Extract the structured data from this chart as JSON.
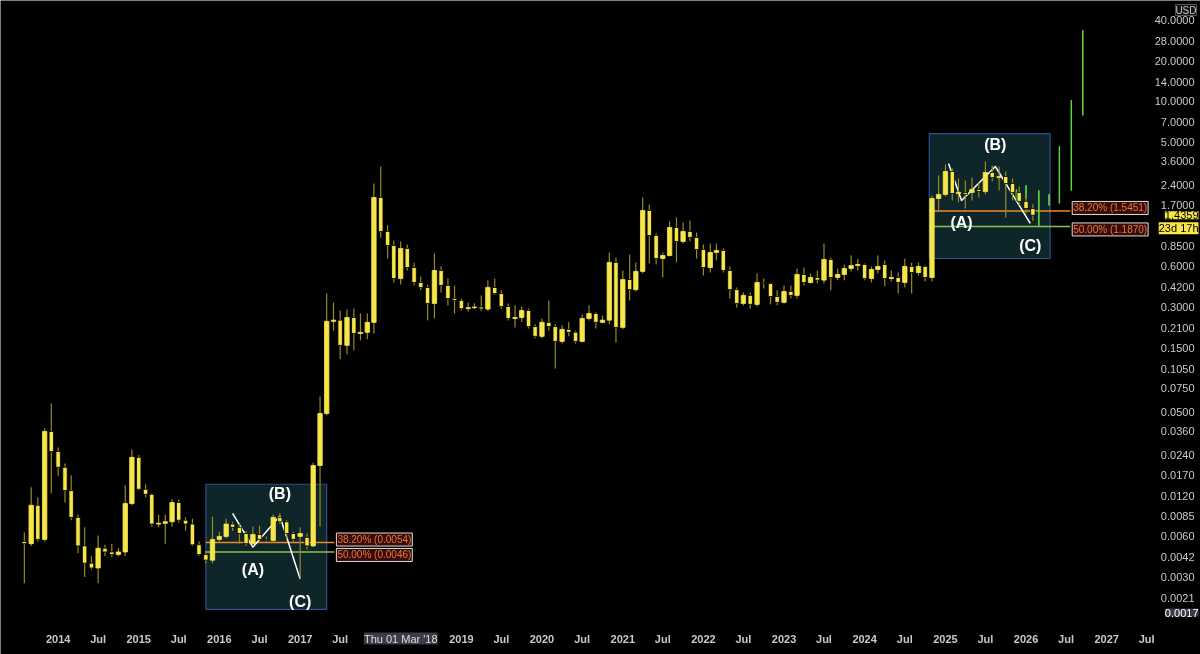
{
  "chart_data": {
    "type": "candlestick",
    "ylabel": "USD",
    "color": "#f7e64a",
    "log": "y",
    "grid": false,
    "x": [
      "2013-08",
      "2013-09",
      "2013-10",
      "2013-11",
      "2013-12",
      "2014-01",
      "2014-02",
      "2014-03",
      "2014-04",
      "2014-05",
      "2014-06",
      "2014-07",
      "2014-08",
      "2014-09",
      "2014-10",
      "2014-11",
      "2014-12",
      "2015-01",
      "2015-02",
      "2015-03",
      "2015-04",
      "2015-05",
      "2015-06",
      "2015-07",
      "2015-08",
      "2015-09",
      "2015-10",
      "2015-11",
      "2015-12",
      "2016-01",
      "2016-02",
      "2016-03",
      "2016-04",
      "2016-05",
      "2016-06",
      "2016-07",
      "2016-08",
      "2016-09",
      "2016-10",
      "2016-11",
      "2016-12",
      "2017-01",
      "2017-02",
      "2017-03",
      "2017-04",
      "2017-05",
      "2017-06",
      "2017-07",
      "2017-08",
      "2017-09",
      "2017-10",
      "2017-11",
      "2017-12",
      "2018-01",
      "2018-02",
      "2018-03",
      "2018-04",
      "2018-05",
      "2018-06",
      "2018-07",
      "2018-08",
      "2018-09",
      "2018-10",
      "2018-11",
      "2018-12",
      "2019-01",
      "2019-02",
      "2019-03",
      "2019-04",
      "2019-05",
      "2019-06",
      "2019-07",
      "2019-08",
      "2019-09",
      "2019-10",
      "2019-11",
      "2019-12",
      "2020-01",
      "2020-02",
      "2020-03",
      "2020-04",
      "2020-05",
      "2020-06",
      "2020-07",
      "2020-08",
      "2020-09",
      "2020-10",
      "2020-11",
      "2020-12",
      "2021-01",
      "2021-02",
      "2021-03",
      "2021-04",
      "2021-05",
      "2021-06",
      "2021-07",
      "2021-08",
      "2021-09",
      "2021-10",
      "2021-11",
      "2021-12",
      "2022-01",
      "2022-02",
      "2022-03",
      "2022-04",
      "2022-05",
      "2022-06",
      "2022-07",
      "2022-08",
      "2022-09",
      "2022-10",
      "2022-11",
      "2022-12",
      "2023-01",
      "2023-02",
      "2023-03",
      "2023-04",
      "2023-05",
      "2023-06",
      "2023-07",
      "2023-08",
      "2023-09",
      "2023-10",
      "2023-11",
      "2023-12",
      "2024-01",
      "2024-02",
      "2024-03",
      "2024-04",
      "2024-05",
      "2024-06",
      "2024-07",
      "2024-08",
      "2024-09",
      "2024-10",
      "2024-11",
      "2024-12",
      "2025-01",
      "2025-02",
      "2025-03",
      "2025-04",
      "2025-05",
      "2025-06",
      "2025-07",
      "2025-08",
      "2025-09",
      "2025-10",
      "2025-11",
      "2025-12",
      "2026-01",
      "2026-02"
    ],
    "ohlc": [
      [
        0.0055,
        0.0064,
        0.0027,
        0.0053
      ],
      [
        0.0053,
        0.0139,
        0.0051,
        0.0102
      ],
      [
        0.0102,
        0.0117,
        0.0055,
        0.0057
      ],
      [
        0.0057,
        0.0378,
        0.0055,
        0.0359
      ],
      [
        0.0359,
        0.0579,
        0.0125,
        0.0255
      ],
      [
        0.0255,
        0.0273,
        0.0167,
        0.0195
      ],
      [
        0.0195,
        0.0208,
        0.0107,
        0.0131
      ],
      [
        0.0131,
        0.017,
        0.0079,
        0.0083
      ],
      [
        0.0083,
        0.0087,
        0.0045,
        0.0051
      ],
      [
        0.0051,
        0.007,
        0.003,
        0.0038
      ],
      [
        0.0038,
        0.0043,
        0.0034,
        0.0035
      ],
      [
        0.0035,
        0.0061,
        0.0027,
        0.0049
      ],
      [
        0.0049,
        0.0052,
        0.0043,
        0.0046
      ],
      [
        0.0046,
        0.0053,
        0.0042,
        0.0044
      ],
      [
        0.0044,
        0.0049,
        0.0043,
        0.0046
      ],
      [
        0.0046,
        0.0143,
        0.0043,
        0.0105
      ],
      [
        0.0105,
        0.0264,
        0.0102,
        0.0231
      ],
      [
        0.0231,
        0.024,
        0.0131,
        0.0134
      ],
      [
        0.0134,
        0.0146,
        0.0117,
        0.0123
      ],
      [
        0.0123,
        0.0125,
        0.0071,
        0.0074
      ],
      [
        0.0074,
        0.0087,
        0.007,
        0.0075
      ],
      [
        0.0075,
        0.0087,
        0.0053,
        0.0077
      ],
      [
        0.0077,
        0.0113,
        0.0071,
        0.0107
      ],
      [
        0.0107,
        0.0113,
        0.0076,
        0.0079
      ],
      [
        0.0079,
        0.0083,
        0.0066,
        0.0074
      ],
      [
        0.0074,
        0.0081,
        0.0051,
        0.0052
      ],
      [
        0.0052,
        0.0055,
        0.0043,
        0.0044
      ],
      [
        0.0044,
        0.0047,
        0.0038,
        0.004
      ],
      [
        0.004,
        0.0084,
        0.0038,
        0.0057
      ],
      [
        0.0057,
        0.0065,
        0.0055,
        0.006
      ],
      [
        0.006,
        0.0081,
        0.0058,
        0.0074
      ],
      [
        0.0074,
        0.0077,
        0.0066,
        0.007
      ],
      [
        0.007,
        0.0074,
        0.0053,
        0.0063
      ],
      [
        0.0063,
        0.0066,
        0.0051,
        0.0053
      ],
      [
        0.0053,
        0.0071,
        0.0051,
        0.0062
      ],
      [
        0.0062,
        0.0072,
        0.0055,
        0.0057
      ],
      [
        0.0057,
        0.006,
        0.0054,
        0.0056
      ],
      [
        0.0056,
        0.0087,
        0.0055,
        0.0083
      ],
      [
        0.0083,
        0.0089,
        0.0074,
        0.0077
      ],
      [
        0.0077,
        0.0079,
        0.0056,
        0.0063
      ],
      [
        0.0063,
        0.0065,
        0.0055,
        0.0057
      ],
      [
        0.006,
        0.007,
        0.0029,
        0.0063
      ],
      [
        0.0059,
        0.0063,
        0.0048,
        0.0051
      ],
      [
        0.0051,
        0.0212,
        0.005,
        0.0201
      ],
      [
        0.0201,
        0.0653,
        0.0071,
        0.0488
      ],
      [
        0.0488,
        0.378,
        0.0473,
        0.235
      ],
      [
        0.235,
        0.324,
        0.2,
        0.24
      ],
      [
        0.24,
        0.283,
        0.123,
        0.156
      ],
      [
        0.156,
        0.288,
        0.134,
        0.251
      ],
      [
        0.251,
        0.293,
        0.143,
        0.191
      ],
      [
        0.191,
        0.269,
        0.17,
        0.195
      ],
      [
        0.195,
        0.269,
        0.173,
        0.231
      ],
      [
        0.231,
        2.47,
        0.191,
        1.945
      ],
      [
        1.945,
        3.3,
        0.98,
        1.09
      ],
      [
        1.09,
        1.21,
        0.687,
        0.858
      ],
      [
        0.858,
        0.934,
        0.456,
        0.488
      ],
      [
        0.488,
        0.918,
        0.441,
        0.815
      ],
      [
        0.815,
        0.872,
        0.56,
        0.589
      ],
      [
        0.589,
        0.641,
        0.434,
        0.456
      ],
      [
        0.456,
        0.505,
        0.4,
        0.419
      ],
      [
        0.419,
        0.441,
        0.239,
        0.319
      ],
      [
        0.319,
        0.748,
        0.247,
        0.56
      ],
      [
        0.56,
        0.6,
        0.385,
        0.434
      ],
      [
        0.434,
        0.488,
        0.308,
        0.347
      ],
      [
        0.347,
        0.434,
        0.269,
        0.336
      ],
      [
        0.336,
        0.347,
        0.283,
        0.292
      ],
      [
        0.292,
        0.324,
        0.278,
        0.297
      ],
      [
        0.297,
        0.32,
        0.29,
        0.3
      ],
      [
        0.3,
        0.366,
        0.28,
        0.29
      ],
      [
        0.29,
        0.473,
        0.28,
        0.419
      ],
      [
        0.419,
        0.488,
        0.37,
        0.378
      ],
      [
        0.378,
        0.4,
        0.292,
        0.303
      ],
      [
        0.303,
        0.319,
        0.239,
        0.247
      ],
      [
        0.247,
        0.31,
        0.212,
        0.251
      ],
      [
        0.251,
        0.303,
        0.232,
        0.283
      ],
      [
        0.283,
        0.292,
        0.208,
        0.215
      ],
      [
        0.215,
        0.224,
        0.176,
        0.182
      ],
      [
        0.182,
        0.247,
        0.176,
        0.231
      ],
      [
        0.231,
        0.336,
        0.2,
        0.215
      ],
      [
        0.215,
        0.224,
        0.105,
        0.167
      ],
      [
        0.167,
        0.22,
        0.161,
        0.205
      ],
      [
        0.205,
        0.231,
        0.182,
        0.195
      ],
      [
        0.195,
        0.2,
        0.161,
        0.167
      ],
      [
        0.167,
        0.264,
        0.164,
        0.247
      ],
      [
        0.247,
        0.31,
        0.239,
        0.269
      ],
      [
        0.269,
        0.274,
        0.208,
        0.231
      ],
      [
        0.231,
        0.26,
        0.228,
        0.24
      ],
      [
        0.24,
        0.761,
        0.224,
        0.642
      ],
      [
        0.642,
        0.7,
        0.164,
        0.212
      ],
      [
        0.212,
        0.56,
        0.205,
        0.48
      ],
      [
        0.48,
        0.736,
        0.336,
        0.404
      ],
      [
        0.404,
        0.642,
        0.391,
        0.551
      ],
      [
        0.551,
        1.945,
        0.532,
        1.558
      ],
      [
        1.558,
        1.726,
        0.631,
        1.017
      ],
      [
        1.017,
        1.05,
        0.62,
        0.687
      ],
      [
        0.687,
        0.76,
        0.497,
        0.723
      ],
      [
        0.723,
        1.29,
        0.71,
        1.166
      ],
      [
        1.166,
        1.383,
        0.642,
        0.918
      ],
      [
        0.918,
        1.27,
        0.887,
        1.089
      ],
      [
        1.089,
        1.314,
        0.918,
        0.983
      ],
      [
        0.983,
        1.07,
        0.687,
        0.8
      ],
      [
        0.8,
        0.872,
        0.514,
        0.589
      ],
      [
        0.589,
        0.887,
        0.54,
        0.761
      ],
      [
        0.761,
        0.887,
        0.665,
        0.788
      ],
      [
        0.788,
        0.815,
        0.541,
        0.56
      ],
      [
        0.56,
        0.6,
        0.347,
        0.404
      ],
      [
        0.404,
        0.419,
        0.297,
        0.319
      ],
      [
        0.319,
        0.385,
        0.308,
        0.366
      ],
      [
        0.366,
        0.385,
        0.292,
        0.314
      ],
      [
        0.314,
        0.532,
        0.303,
        0.456
      ],
      [
        0.456,
        0.488,
        0.411,
        0.448
      ],
      [
        0.448,
        0.456,
        0.314,
        0.359
      ],
      [
        0.359,
        0.4,
        0.31,
        0.325
      ],
      [
        0.325,
        0.434,
        0.319,
        0.391
      ],
      [
        0.391,
        0.434,
        0.347,
        0.366
      ],
      [
        0.366,
        0.58,
        0.347,
        0.523
      ],
      [
        0.523,
        0.589,
        0.434,
        0.456
      ],
      [
        0.456,
        0.532,
        0.448,
        0.497
      ],
      [
        0.497,
        0.56,
        0.45,
        0.475
      ],
      [
        0.475,
        0.887,
        0.448,
        0.676
      ],
      [
        0.676,
        0.7,
        0.4,
        0.497
      ],
      [
        0.497,
        0.58,
        0.473,
        0.523
      ],
      [
        0.523,
        0.62,
        0.473,
        0.579
      ],
      [
        0.579,
        0.723,
        0.551,
        0.609
      ],
      [
        0.609,
        0.68,
        0.56,
        0.62
      ],
      [
        0.62,
        0.63,
        0.473,
        0.488
      ],
      [
        0.488,
        0.6,
        0.456,
        0.57
      ],
      [
        0.57,
        0.723,
        0.532,
        0.6
      ],
      [
        0.62,
        0.665,
        0.427,
        0.488
      ],
      [
        0.488,
        0.56,
        0.465,
        0.497
      ],
      [
        0.497,
        0.54,
        0.378,
        0.456
      ],
      [
        0.456,
        0.687,
        0.419,
        0.6
      ],
      [
        0.6,
        0.642,
        0.378,
        0.541
      ],
      [
        0.541,
        0.642,
        0.514,
        0.6
      ],
      [
        0.6,
        0.61,
        0.464,
        0.497
      ],
      [
        0.497,
        2.01,
        0.464,
        1.91
      ],
      [
        1.91,
        2.83,
        1.56,
        2.05
      ],
      [
        2.05,
        3.42,
        1.98,
        3.03
      ],
      [
        3.03,
        3.19,
        1.85,
        2.08
      ],
      [
        2.08,
        2.69,
        1.79,
        2.12
      ],
      [
        2.12,
        2.6,
        1.61,
        2.05
      ],
      [
        2.12,
        2.73,
        1.85,
        2.23
      ],
      [
        2.23,
        2.51,
        1.945,
        2.15
      ],
      [
        2.15,
        3.59,
        2.05,
        2.98
      ],
      [
        2.98,
        3.36,
        2.56,
        2.73
      ],
      [
        2.73,
        3.3,
        2.19,
        2.78
      ],
      [
        2.78,
        3.03,
        1.38,
        2.47
      ],
      [
        2.47,
        2.69,
        1.85,
        2.12
      ],
      [
        2.12,
        2.35,
        1.7,
        1.82
      ],
      [
        1.82,
        2.08,
        1.48,
        1.61
      ],
      [
        1.61,
        1.73,
        1.3,
        1.4359
      ]
    ],
    "series": [
      {
        "type": "area",
        "color": "#0f272b",
        "x": [
          "2015-11-01",
          "2015-11-01",
          "2017-05-01",
          "2017-05-01"
        ],
        "values": [
          0.00173,
          0.0146,
          0.0146,
          0.00173
        ]
      },
      {
        "type": "area",
        "color": "#0f272b",
        "x": [
          "2024-10-20",
          "2024-10-20",
          "2026-04-20",
          "2026-04-20"
        ],
        "values": [
          0.687,
          5.79,
          5.79,
          0.687
        ]
      },
      {
        "type": "line",
        "color": "#f08a24",
        "x": [
          "2015-11-01",
          "2017-06-05"
        ],
        "values": [
          0.0054,
          0.0054
        ]
      },
      {
        "type": "line",
        "color": "#8bc34a",
        "x": [
          "2015-11-01",
          "2017-06-05"
        ],
        "values": [
          0.0046,
          0.0046
        ]
      },
      {
        "type": "line",
        "color": "#f08a24",
        "x": [
          "2024-10-20",
          "2026-07-20"
        ],
        "values": [
          1.5451,
          1.5451
        ]
      },
      {
        "type": "line",
        "color": "#8bc34a",
        "x": [
          "2024-10-20",
          "2026-07-20"
        ],
        "values": [
          1.187,
          1.187
        ]
      },
      {
        "type": "line",
        "color": "#ffffff",
        "x": [
          "2016-03-01",
          "2016-06-01",
          "2016-10-01",
          "2017-01-01"
        ],
        "values": [
          0.0089,
          0.005,
          0.0085,
          0.0029
        ]
      },
      {
        "type": "line",
        "color": "#ffffff",
        "x": [
          "2025-01-15",
          "2025-03-15",
          "2025-08-15",
          "2026-01-20"
        ],
        "values": [
          3.47,
          1.85,
          3.3,
          1.25
        ]
      },
      {
        "type": "bar",
        "color": "#5fd63f",
        "x": [
          "2025-11-18",
          "2026-01-01",
          "2026-02-28",
          "2026-04-15",
          "2026-06-01",
          "2026-07-25",
          "2026-09-15"
        ],
        "base": [
          1.85,
          1.91,
          1.2,
          1.7,
          1.76,
          2.19,
          7.9
        ],
        "values": [
          0.38,
          0.48,
          0.99,
          0.35,
          2.88,
          8.01,
          25.7
        ]
      }
    ],
    "xlim": [
      "2013-04-15",
      "2028-03-01"
    ],
    "xticks": [
      {
        "value": "2014-01-01",
        "label": "2014"
      },
      {
        "value": "2014-07-01",
        "label": "Jul"
      },
      {
        "value": "2015-01-01",
        "label": "2015"
      },
      {
        "value": "2015-07-01",
        "label": "Jul"
      },
      {
        "value": "2016-01-01",
        "label": "2016"
      },
      {
        "value": "2016-07-01",
        "label": "Jul"
      },
      {
        "value": "2017-01-01",
        "label": "2017"
      },
      {
        "value": "2017-07-01",
        "label": "Jul"
      },
      {
        "value": "2019-01-01",
        "label": "2019"
      },
      {
        "value": "2019-07-01",
        "label": "Jul"
      },
      {
        "value": "2020-01-01",
        "label": "2020"
      },
      {
        "value": "2020-07-01",
        "label": "Jul"
      },
      {
        "value": "2021-01-01",
        "label": "2021"
      },
      {
        "value": "2021-07-01",
        "label": "Jul"
      },
      {
        "value": "2022-01-01",
        "label": "2022"
      },
      {
        "value": "2022-07-01",
        "label": "Jul"
      },
      {
        "value": "2023-01-01",
        "label": "2023"
      },
      {
        "value": "2023-07-01",
        "label": "Jul"
      },
      {
        "value": "2024-01-01",
        "label": "2024"
      },
      {
        "value": "2024-07-01",
        "label": "Jul"
      },
      {
        "value": "2025-01-01",
        "label": "2025"
      },
      {
        "value": "2025-07-01",
        "label": "Jul"
      },
      {
        "value": "2026-01-01",
        "label": "2026"
      },
      {
        "value": "2026-07-01",
        "label": "Jul"
      },
      {
        "value": "2027-01-01",
        "label": "2027"
      },
      {
        "value": "2027-07-01",
        "label": "Jul"
      }
    ],
    "ylim": [
      0.0008,
      56
    ],
    "yticks": [
      {
        "value": 40,
        "label": "40.0000"
      },
      {
        "value": 28,
        "label": "28.0000"
      },
      {
        "value": 20,
        "label": "20.0000"
      },
      {
        "value": 14,
        "label": "14.0000"
      },
      {
        "value": 10,
        "label": "10.0000"
      },
      {
        "value": 7,
        "label": "7.0000"
      },
      {
        "value": 5,
        "label": "5.0000"
      },
      {
        "value": 3.6,
        "label": "3.6000"
      },
      {
        "value": 2.4,
        "label": "2.4000"
      },
      {
        "value": 1.7,
        "label": "1.7000"
      },
      {
        "value": 0.85,
        "label": "0.8500"
      },
      {
        "value": 0.6,
        "label": "0.6000"
      },
      {
        "value": 0.42,
        "label": "0.4200"
      },
      {
        "value": 0.3,
        "label": "0.3000"
      },
      {
        "value": 0.21,
        "label": "0.2100"
      },
      {
        "value": 0.15,
        "label": "0.1500"
      },
      {
        "value": 0.105,
        "label": "0.1050"
      },
      {
        "value": 0.075,
        "label": "0.0750"
      },
      {
        "value": 0.05,
        "label": "0.0500"
      },
      {
        "value": 0.036,
        "label": "0.0360"
      },
      {
        "value": 0.024,
        "label": "0.0240"
      },
      {
        "value": 0.017,
        "label": "0.0170"
      },
      {
        "value": 0.012,
        "label": "0.0120"
      },
      {
        "value": 0.0085,
        "label": "0.0085"
      },
      {
        "value": 0.006,
        "label": "0.0060"
      },
      {
        "value": 0.0042,
        "label": "0.0042"
      },
      {
        "value": 0.003,
        "label": "0.0030"
      },
      {
        "value": 0.0021,
        "label": "0.0021"
      }
    ],
    "annotations": [
      {
        "text": "(A)",
        "x": "2016-06-01",
        "y": 0.005
      },
      {
        "text": "(B)",
        "x": "2016-10-01",
        "y": 0.0085
      },
      {
        "text": "(C)",
        "x": "2017-01-01",
        "y": 0.0029
      },
      {
        "text": "(A)",
        "x": "2025-03-15",
        "y": 1.85
      },
      {
        "text": "(B)",
        "x": "2025-08-15",
        "y": 3.3
      },
      {
        "text": "(C)",
        "x": "2026-01-20",
        "y": 1.25
      },
      {
        "text": "38.20% (0.0054)",
        "x": "2017-06-05",
        "y": 0.0054
      },
      {
        "text": "50.00% (0.0046)",
        "x": "2017-06-05",
        "y": 0.0046
      },
      {
        "text": "38.20% (1.5451)",
        "x": "2026-07-20",
        "y": 1.5451
      },
      {
        "text": "50.00% (1.1870)",
        "x": "2026-07-20",
        "y": 1.187
      },
      "1.4359",
      "23d 17h",
      "0.0017",
      "Thu 01 Mar '18"
    ]
  }
}
